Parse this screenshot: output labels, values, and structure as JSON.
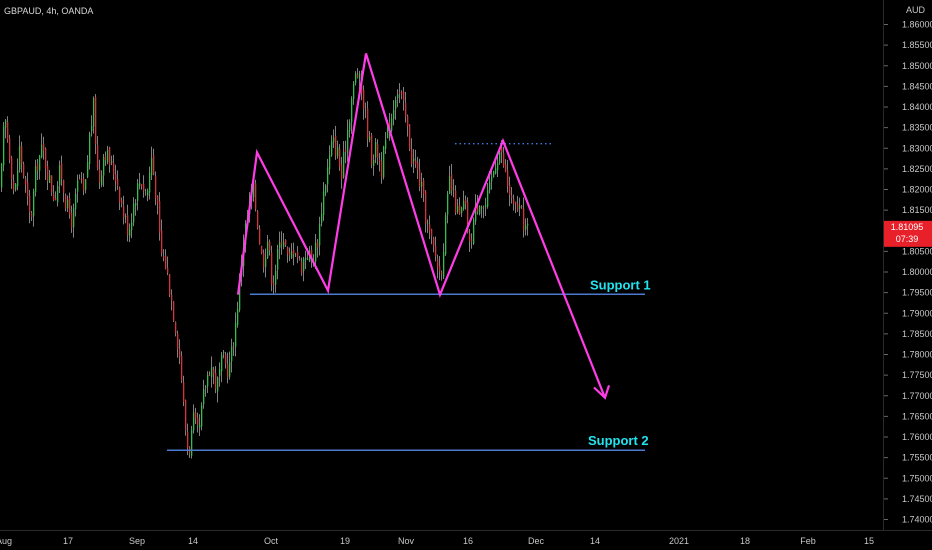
{
  "symbol_header": "GBPAUD, 4h, OANDA",
  "currency": "AUD",
  "colors": {
    "background": "#000000",
    "up_candle": "#2fbf4a",
    "down_candle": "#d8323b",
    "wick": "#a0a0a0",
    "pattern": "#ff3de6",
    "support": "#4a7bd1",
    "support_label": "#22e4f0",
    "resistance_dots": "#3b7be0",
    "price_tag": "#e8202a"
  },
  "price_tag": {
    "price": "1.81095",
    "countdown": "07:39"
  },
  "annotations": {
    "support1": "Support 1",
    "support2": "Support 2"
  },
  "chart_data": {
    "type": "candlestick",
    "title": "",
    "ylim": [
      1.7395,
      1.8645
    ],
    "y_ticks": [
      "1.86000",
      "1.85500",
      "1.85000",
      "1.84500",
      "1.84000",
      "1.83500",
      "1.83000",
      "1.82500",
      "1.82000",
      "1.81500",
      "1.81000",
      "1.80500",
      "1.80000",
      "1.79500",
      "1.79000",
      "1.78500",
      "1.78000",
      "1.77500",
      "1.77000",
      "1.76500",
      "1.76000",
      "1.75500",
      "1.75000",
      "1.74500",
      "1.74000"
    ],
    "x_ticks": [
      "Aug",
      "17",
      "Sep",
      "14",
      "Oct",
      "19",
      "Nov",
      "16",
      "Dec",
      "14",
      "2021",
      "18",
      "Feb",
      "15"
    ],
    "close_path": [
      [
        0,
        1.82
      ],
      [
        4,
        1.838
      ],
      [
        9,
        1.829
      ],
      [
        14,
        1.818
      ],
      [
        19,
        1.83
      ],
      [
        24,
        1.822
      ],
      [
        30,
        1.812
      ],
      [
        36,
        1.826
      ],
      [
        42,
        1.83
      ],
      [
        48,
        1.823
      ],
      [
        54,
        1.818
      ],
      [
        60,
        1.825
      ],
      [
        66,
        1.816
      ],
      [
        72,
        1.812
      ],
      [
        78,
        1.823
      ],
      [
        84,
        1.818
      ],
      [
        89,
        1.833
      ],
      [
        93,
        1.84
      ],
      [
        98,
        1.821
      ],
      [
        104,
        1.83
      ],
      [
        110,
        1.826
      ],
      [
        116,
        1.823
      ],
      [
        122,
        1.815
      ],
      [
        128,
        1.81
      ],
      [
        134,
        1.818
      ],
      [
        140,
        1.823
      ],
      [
        146,
        1.818
      ],
      [
        151,
        1.828
      ],
      [
        156,
        1.818
      ],
      [
        160,
        1.805
      ],
      [
        165,
        1.802
      ],
      [
        170,
        1.795
      ],
      [
        175,
        1.787
      ],
      [
        180,
        1.778
      ],
      [
        184,
        1.764
      ],
      [
        188,
        1.756
      ],
      [
        193,
        1.764
      ],
      [
        198,
        1.76
      ],
      [
        204,
        1.772
      ],
      [
        210,
        1.778
      ],
      [
        216,
        1.772
      ],
      [
        222,
        1.779
      ],
      [
        228,
        1.776
      ],
      [
        234,
        1.785
      ],
      [
        238,
        1.795
      ],
      [
        243,
        1.808
      ],
      [
        248,
        1.815
      ],
      [
        253,
        1.82
      ],
      [
        257,
        1.812
      ],
      [
        262,
        1.802
      ],
      [
        267,
        1.808
      ],
      [
        272,
        1.797
      ],
      [
        277,
        1.804
      ],
      [
        282,
        1.81
      ],
      [
        288,
        1.802
      ],
      [
        294,
        1.807
      ],
      [
        300,
        1.801
      ],
      [
        306,
        1.805
      ],
      [
        312,
        1.803
      ],
      [
        318,
        1.809
      ],
      [
        322,
        1.818
      ],
      [
        327,
        1.825
      ],
      [
        332,
        1.832
      ],
      [
        337,
        1.829
      ],
      [
        341,
        1.823
      ],
      [
        346,
        1.833
      ],
      [
        351,
        1.842
      ],
      [
        356,
        1.849
      ],
      [
        361,
        1.844
      ],
      [
        366,
        1.836
      ],
      [
        371,
        1.828
      ],
      [
        376,
        1.83
      ],
      [
        381,
        1.825
      ],
      [
        386,
        1.833
      ],
      [
        391,
        1.838
      ],
      [
        396,
        1.845
      ],
      [
        401,
        1.842
      ],
      [
        406,
        1.836
      ],
      [
        411,
        1.828
      ],
      [
        416,
        1.825
      ],
      [
        421,
        1.82
      ],
      [
        426,
        1.812
      ],
      [
        431,
        1.807
      ],
      [
        436,
        1.803
      ],
      [
        440,
        1.799
      ],
      [
        445,
        1.812
      ],
      [
        449,
        1.822
      ],
      [
        454,
        1.817
      ],
      [
        459,
        1.813
      ],
      [
        464,
        1.817
      ],
      [
        469,
        1.806
      ],
      [
        474,
        1.814
      ],
      [
        479,
        1.818
      ],
      [
        484,
        1.815
      ],
      [
        489,
        1.82
      ],
      [
        494,
        1.826
      ],
      [
        499,
        1.83
      ],
      [
        503,
        1.826
      ],
      [
        508,
        1.82
      ],
      [
        513,
        1.815
      ],
      [
        518,
        1.816
      ],
      [
        523,
        1.812
      ],
      [
        527,
        1.81
      ]
    ],
    "pattern_points": [
      [
        238,
        1.7945
      ],
      [
        257,
        1.829
      ],
      [
        328,
        1.7955
      ],
      [
        366,
        1.853
      ],
      [
        440,
        1.7945
      ],
      [
        503,
        1.8318
      ],
      [
        605,
        1.7695
      ]
    ],
    "pattern_arrow_head": [
      [
        594,
        1.772
      ],
      [
        605,
        1.7695
      ],
      [
        609,
        1.7725
      ]
    ],
    "support_1": {
      "price": 1.7946,
      "x_start": 250,
      "x_end": 645,
      "label_x": 590
    },
    "support_2": {
      "price": 1.7568,
      "x_start": 167,
      "x_end": 645,
      "label_x": 588
    },
    "resistance_dotted": {
      "price": 1.8311,
      "x_start": 455,
      "x_end": 552
    }
  }
}
